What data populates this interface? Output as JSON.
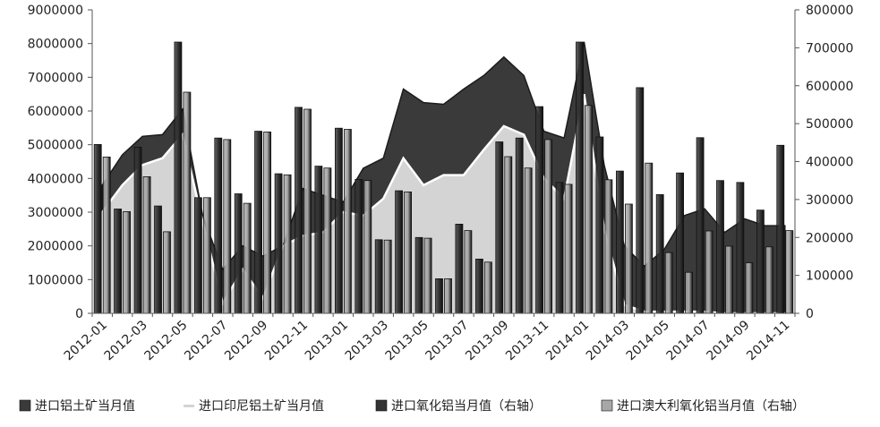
{
  "chart_data": {
    "type": "bar+area",
    "x": [
      "2012-01",
      "2012-02",
      "2012-03",
      "2012-04",
      "2012-05",
      "2012-06",
      "2012-07",
      "2012-08",
      "2012-09",
      "2012-10",
      "2012-11",
      "2012-12",
      "2013-01",
      "2013-02",
      "2013-03",
      "2013-04",
      "2013-05",
      "2013-06",
      "2013-07",
      "2013-08",
      "2013-09",
      "2013-10",
      "2013-11",
      "2013-12",
      "2014-01",
      "2014-02",
      "2014-03",
      "2014-04",
      "2014-05",
      "2014-06",
      "2014-07",
      "2014-08",
      "2014-09",
      "2014-10",
      "2014-11"
    ],
    "x_tick_labels": [
      "2012-01",
      "2012-03",
      "2012-05",
      "2012-07",
      "2012-09",
      "2012-11",
      "2013-01",
      "2013-03",
      "2013-05",
      "2013-07",
      "2013-09",
      "2013-11",
      "2014-01",
      "2014-03",
      "2014-05",
      "2014-07",
      "2014-09",
      "2014-11"
    ],
    "y_left": {
      "min": 0,
      "max": 9000000,
      "ticks": [
        "0",
        "1000000",
        "2000000",
        "3000000",
        "4000000",
        "5000000",
        "6000000",
        "7000000",
        "8000000",
        "9000000"
      ]
    },
    "y_right": {
      "min": 0,
      "max": 800000,
      "ticks": [
        "0",
        "100000",
        "200000",
        "300000",
        "400000",
        "500000",
        "600000",
        "700000",
        "800000"
      ]
    },
    "series": [
      {
        "name": "进口铝土矿当月值",
        "axis": "left",
        "render": "area",
        "color": "#3a3a3a",
        "values": [
          3800000,
          4700000,
          5250000,
          5300000,
          6050000,
          2900000,
          1300000,
          2000000,
          1700000,
          2000000,
          3700000,
          3500000,
          3300000,
          4300000,
          4600000,
          6650000,
          6250000,
          6200000,
          6650000,
          7050000,
          7600000,
          7050000,
          5400000,
          5200000,
          8050000,
          4400000,
          2000000,
          1400000,
          1900000,
          2900000,
          3100000,
          2400000,
          2800000,
          2600000,
          2600000
        ]
      },
      {
        "name": "进口印尼铝土矿当月值",
        "axis": "left",
        "render": "area",
        "color": "#d4d4d4",
        "values": [
          3000000,
          3800000,
          4400000,
          4600000,
          5300000,
          2700000,
          300000,
          1300000,
          450000,
          2000000,
          2300000,
          2400000,
          3000000,
          2900000,
          3400000,
          4600000,
          3800000,
          4100000,
          4100000,
          4850000,
          5550000,
          5300000,
          4000000,
          3400000,
          6500000,
          2500000,
          250000,
          50000,
          50000,
          50000,
          50000,
          0,
          0,
          0,
          0
        ]
      },
      {
        "name": "进口氧化铝当月值（右轴）",
        "axis": "right",
        "render": "bar",
        "color": "#333333",
        "values": [
          445000,
          275000,
          438000,
          283000,
          715000,
          305000,
          462000,
          315000,
          480000,
          368000,
          543000,
          388000,
          488000,
          353000,
          194000,
          323000,
          200000,
          91000,
          235000,
          143000,
          452000,
          462000,
          545000,
          345000,
          715000,
          465000,
          375000,
          595000,
          313000,
          370000,
          463000,
          350000,
          345000,
          272000,
          443000
        ]
      },
      {
        "name": "进口澳大利氧化铝当月值（右轴）",
        "axis": "right",
        "render": "bar",
        "color": "#a8a8a8",
        "values": [
          412000,
          268000,
          360000,
          215000,
          583000,
          305000,
          458000,
          290000,
          478000,
          365000,
          538000,
          383000,
          485000,
          350000,
          193000,
          320000,
          198000,
          91000,
          218000,
          135000,
          413000,
          383000,
          458000,
          340000,
          548000,
          352000,
          288000,
          396000,
          160000,
          108000,
          217000,
          177000,
          133000,
          175000,
          218000
        ]
      }
    ],
    "legend": {
      "placement": "bottom",
      "entries": [
        "进口铝土矿当月值",
        "进口印尼铝土矿当月值",
        "进口氧化铝当月值（右轴）",
        "进口澳大利氧化铝当月值（右轴）"
      ]
    },
    "grid": false
  }
}
